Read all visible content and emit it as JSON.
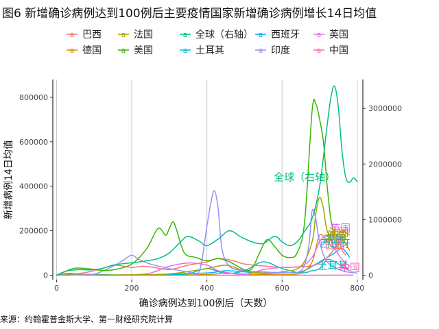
{
  "chart_data": {
    "type": "line",
    "title": "图6 新增确诊病例达到100例后主要疫情国家新增确诊病例增长14日均值",
    "xlabel": "确诊病例达到100例后（天数）",
    "ylabel": "新增病例14日均值",
    "source": "来源：约翰霍普金斯大学、第一财经研究院计算",
    "xlim": [
      -10,
      815
    ],
    "ylim": [
      -20000,
      880000
    ],
    "y2lim": [
      -80000,
      3520000
    ],
    "x_ticks": [
      0,
      200,
      400,
      600,
      800
    ],
    "y_ticks": [
      0,
      200000,
      400000,
      600000,
      800000
    ],
    "y2_ticks": [
      0,
      1000000,
      2000000,
      3000000
    ],
    "x_tick_labels": [
      "0",
      "200",
      "400",
      "600",
      "800"
    ],
    "y_tick_labels": [
      "0",
      "200000",
      "400000",
      "600000",
      "800000"
    ],
    "y2_tick_labels": [
      "0",
      "1000000",
      "2000000",
      "3000000"
    ],
    "legend_position": "top",
    "series": [
      {
        "name": "巴西",
        "color": "#F8766D",
        "axis": "left",
        "x": [
          0,
          60,
          100,
          140,
          160,
          200,
          230,
          260,
          300,
          350,
          400,
          430,
          470,
          500,
          560,
          600,
          650,
          680,
          700,
          720,
          740,
          750,
          760,
          770
        ],
        "y": [
          0,
          8000,
          20000,
          40000,
          45000,
          35000,
          40000,
          35000,
          25000,
          45000,
          60000,
          75000,
          65000,
          50000,
          40000,
          35000,
          38000,
          42000,
          55000,
          80000,
          120000,
          150000,
          110000,
          90000
        ]
      },
      {
        "name": "德国",
        "color": "#D89000",
        "axis": "left",
        "x": [
          0,
          30,
          60,
          100,
          200,
          300,
          400,
          450,
          500,
          600,
          650,
          680,
          700,
          720,
          740,
          760,
          780
        ],
        "y": [
          0,
          2000,
          4000,
          1000,
          500,
          1000,
          3000,
          10000,
          5000,
          2000,
          10000,
          60000,
          180000,
          150000,
          120000,
          160000,
          110000
        ]
      },
      {
        "name": "法国",
        "color": "#A3A500",
        "axis": "left",
        "x": [
          0,
          30,
          60,
          100,
          200,
          300,
          400,
          450,
          500,
          550,
          600,
          650,
          680,
          690,
          700,
          710,
          720,
          740,
          760,
          780
        ],
        "y": [
          0,
          3000,
          4000,
          1000,
          2000,
          6000,
          30000,
          45000,
          20000,
          10000,
          15000,
          40000,
          150000,
          280000,
          350000,
          300000,
          200000,
          170000,
          200000,
          180000
        ]
      },
      {
        "name": "美国",
        "color": "#39B600",
        "axis": "left",
        "x": [
          0,
          20,
          50,
          90,
          120,
          150,
          200,
          240,
          270,
          290,
          300,
          310,
          320,
          340,
          370,
          400,
          430,
          460,
          500,
          520,
          540,
          560,
          580,
          600,
          620,
          640,
          660,
          680,
          690,
          700,
          710,
          720,
          730,
          740
        ],
        "y": [
          0,
          15000,
          32000,
          28000,
          22000,
          24000,
          50000,
          120000,
          210000,
          180000,
          210000,
          240000,
          200000,
          100000,
          80000,
          65000,
          75000,
          60000,
          25000,
          30000,
          100000,
          160000,
          130000,
          90000,
          80000,
          100000,
          240000,
          740000,
          770000,
          700000,
          600000,
          400000,
          250000,
          180000
        ]
      },
      {
        "name": "全球（右轴）",
        "color": "#00BF7D",
        "axis": "right",
        "x": [
          0,
          30,
          60,
          90,
          120,
          150,
          180,
          210,
          240,
          270,
          300,
          330,
          350,
          380,
          400,
          430,
          460,
          490,
          520,
          550,
          580,
          600,
          620,
          640,
          660,
          680,
          700,
          720,
          730,
          740,
          750,
          760,
          770,
          780,
          790,
          800
        ],
        "y": [
          0,
          80000,
          100000,
          95000,
          120000,
          180000,
          210000,
          230000,
          260000,
          300000,
          400000,
          600000,
          700000,
          610000,
          530000,
          650000,
          800000,
          690000,
          600000,
          570000,
          700000,
          600000,
          530000,
          600000,
          790000,
          1020000,
          1600000,
          2700000,
          3200000,
          3400000,
          3000000,
          2200000,
          1750000,
          1670000,
          1750000,
          1680000
        ]
      },
      {
        "name": "土耳其",
        "color": "#00BFC4",
        "axis": "left",
        "x": [
          0,
          50,
          100,
          150,
          200,
          250,
          300,
          350,
          400,
          450,
          500,
          550,
          600,
          650,
          680,
          700,
          720,
          740,
          760,
          780
        ],
        "y": [
          0,
          3000,
          4000,
          1500,
          1200,
          1800,
          2000,
          6000,
          30000,
          8000,
          20000,
          60000,
          30000,
          10000,
          20000,
          30000,
          70000,
          60000,
          40000,
          20000
        ]
      },
      {
        "name": "西班牙",
        "color": "#00B0F6",
        "axis": "left",
        "x": [
          0,
          30,
          60,
          100,
          200,
          300,
          400,
          450,
          500,
          550,
          600,
          650,
          680,
          700,
          720,
          740,
          760,
          780
        ],
        "y": [
          0,
          8000,
          5000,
          1000,
          500,
          5000,
          10000,
          20000,
          15000,
          8000,
          10000,
          15000,
          40000,
          60000,
          80000,
          100000,
          120000,
          80000
        ]
      },
      {
        "name": "印度",
        "color": "#9590FF",
        "axis": "left",
        "x": [
          0,
          50,
          100,
          150,
          180,
          200,
          220,
          250,
          300,
          350,
          380,
          400,
          410,
          420,
          430,
          440,
          460,
          500,
          550,
          600,
          650,
          670,
          680,
          690,
          700,
          720,
          760,
          800
        ],
        "y": [
          0,
          1000,
          5000,
          40000,
          70000,
          90000,
          70000,
          50000,
          30000,
          15000,
          20000,
          220000,
          320000,
          380000,
          300000,
          120000,
          40000,
          20000,
          15000,
          12000,
          20000,
          120000,
          290000,
          250000,
          150000,
          60000,
          20000,
          10000
        ]
      },
      {
        "name": "英国",
        "color": "#E76BF3",
        "axis": "left",
        "x": [
          0,
          30,
          60,
          100,
          200,
          250,
          300,
          350,
          400,
          430,
          460,
          500,
          550,
          600,
          650,
          680,
          700,
          720,
          740,
          760,
          780
        ],
        "y": [
          0,
          3000,
          5000,
          1000,
          2000,
          10000,
          40000,
          55000,
          45000,
          20000,
          10000,
          3000,
          25000,
          35000,
          40000,
          80000,
          150000,
          180000,
          120000,
          70000,
          40000
        ]
      },
      {
        "name": "中国",
        "color": "#FF62BC",
        "axis": "left",
        "x": [
          0,
          20,
          40,
          60,
          100,
          200,
          300,
          400,
          500,
          600,
          700,
          760,
          790
        ],
        "y": [
          0,
          2000,
          1500,
          200,
          50,
          20,
          30,
          50,
          60,
          80,
          100,
          200,
          300
        ]
      }
    ],
    "annotations": [
      {
        "text": "全球（右轴）",
        "color": "#00BF7D",
        "x": 660,
        "y": 425000
      },
      {
        "text": "英国",
        "color": "#E76BF3",
        "x": 755,
        "y": 195000
      },
      {
        "text": "法国",
        "color": "#A3A500",
        "x": 750,
        "y": 178000
      },
      {
        "text": "德国",
        "color": "#D89000",
        "x": 745,
        "y": 163000
      },
      {
        "text": "美国",
        "color": "#39B600",
        "x": 742,
        "y": 150000
      },
      {
        "text": "印度",
        "color": "#9590FF",
        "x": 738,
        "y": 140000
      },
      {
        "text": "西班牙",
        "color": "#00B0F6",
        "x": 742,
        "y": 127000
      },
      {
        "text": "巴西",
        "color": "#F8766D",
        "x": 740,
        "y": 120000
      },
      {
        "text": "土耳其",
        "color": "#00BFC4",
        "x": 735,
        "y": 28000
      },
      {
        "text": "中国",
        "color": "#FF62BC",
        "x": 780,
        "y": 18000
      }
    ]
  }
}
